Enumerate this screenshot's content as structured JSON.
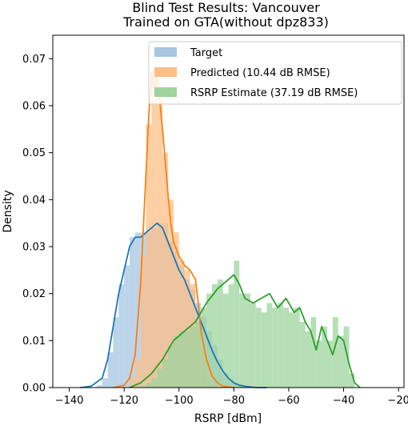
{
  "chart_data": {
    "type": "area",
    "title": "Blind Test Results: Vancouver",
    "subtitle": "Trained on GTA(without dpz833)",
    "xlabel": "RSRP [dBm]",
    "ylabel": "Density",
    "xlim": [
      -146,
      -18
    ],
    "ylim": [
      0,
      0.075
    ],
    "x_ticks": [
      -140,
      -120,
      -100,
      -80,
      -60,
      -40,
      -20
    ],
    "y_ticks": [
      0.0,
      0.01,
      0.02,
      0.03,
      0.04,
      0.05,
      0.06,
      0.07
    ],
    "x_tick_labels": [
      "−140",
      "−120",
      "−100",
      "−80",
      "−60",
      "−40",
      "−20"
    ],
    "y_tick_labels": [
      "0.00",
      "0.01",
      "0.02",
      "0.03",
      "0.04",
      "0.05",
      "0.06",
      "0.07"
    ],
    "grid": false,
    "legend_position": "top-right",
    "bin_width": 2,
    "series": [
      {
        "name": "Target",
        "color": "#1f77b4",
        "hist_color": "#a6c6e2",
        "hist_x": [
          -130,
          -128,
          -126,
          -124,
          -122,
          -120,
          -118,
          -116,
          -114,
          -112,
          -110,
          -108,
          -106,
          -104,
          -102,
          -100,
          -98,
          -96,
          -94,
          -92,
          -90,
          -88,
          -86,
          -84,
          -82,
          -80,
          -78,
          -76
        ],
        "hist_y": [
          0.0005,
          0.002,
          0.0075,
          0.015,
          0.022,
          0.026,
          0.032,
          0.033,
          0.033,
          0.033,
          0.034,
          0.035,
          0.035,
          0.031,
          0.029,
          0.026,
          0.023,
          0.021,
          0.018,
          0.015,
          0.012,
          0.009,
          0.006,
          0.003,
          0.0018,
          0.0008,
          0.0003,
          0.0001
        ],
        "kde_x": [
          -136,
          -132,
          -128,
          -126,
          -124,
          -122,
          -120,
          -118,
          -116,
          -114,
          -112,
          -110,
          -108,
          -106,
          -104,
          -102,
          -100,
          -98,
          -96,
          -94,
          -92,
          -90,
          -88,
          -86,
          -84,
          -82,
          -80,
          -78,
          -75,
          -72,
          -68
        ],
        "kde_y": [
          0.0,
          0.0003,
          0.002,
          0.006,
          0.013,
          0.02,
          0.025,
          0.03,
          0.032,
          0.032,
          0.033,
          0.034,
          0.035,
          0.034,
          0.031,
          0.028,
          0.025,
          0.023,
          0.02,
          0.017,
          0.014,
          0.011,
          0.008,
          0.0055,
          0.0035,
          0.002,
          0.001,
          0.0005,
          0.0002,
          0.0,
          0.0
        ]
      },
      {
        "name": "Predicted (10.44 dB RMSE)",
        "color": "#ff7f0e",
        "hist_color": "#fdbf86",
        "hist_x": [
          -118,
          -116,
          -114,
          -112,
          -110,
          -108,
          -106,
          -104,
          -102,
          -100,
          -98,
          -96,
          -94,
          -92,
          -90,
          -88
        ],
        "hist_y": [
          0.002,
          0.006,
          0.028,
          0.056,
          0.068,
          0.062,
          0.05,
          0.04,
          0.033,
          0.027,
          0.025,
          0.022,
          0.014,
          0.008,
          0.0035,
          0.001
        ],
        "kde_x": [
          -124,
          -120,
          -118,
          -116,
          -114,
          -112,
          -111,
          -110,
          -109,
          -108,
          -107,
          -106,
          -105,
          -104,
          -103,
          -102,
          -100,
          -98,
          -96,
          -94,
          -93,
          -92,
          -90,
          -88,
          -86,
          -84,
          -80
        ],
        "kde_y": [
          0.0,
          0.0005,
          0.002,
          0.007,
          0.022,
          0.046,
          0.058,
          0.067,
          0.064,
          0.066,
          0.061,
          0.055,
          0.048,
          0.041,
          0.035,
          0.031,
          0.028,
          0.026,
          0.025,
          0.023,
          0.018,
          0.012,
          0.006,
          0.0025,
          0.001,
          0.0003,
          0.0
        ]
      },
      {
        "name": "RSRP Estimate (37.19 dB RMSE)",
        "color": "#2ca02c",
        "hist_color": "#9ed49d",
        "hist_x": [
          -114,
          -112,
          -110,
          -108,
          -106,
          -104,
          -102,
          -100,
          -98,
          -96,
          -94,
          -92,
          -90,
          -88,
          -86,
          -84,
          -82,
          -80,
          -78,
          -76,
          -74,
          -72,
          -70,
          -68,
          -66,
          -64,
          -62,
          -60,
          -58,
          -56,
          -54,
          -52,
          -50,
          -48,
          -46,
          -44,
          -42,
          -40,
          -38
        ],
        "hist_y": [
          0.0005,
          0.001,
          0.002,
          0.004,
          0.006,
          0.009,
          0.011,
          0.012,
          0.012,
          0.013,
          0.014,
          0.017,
          0.02,
          0.022,
          0.023,
          0.02,
          0.022,
          0.027,
          0.02,
          0.02,
          0.018,
          0.017,
          0.016,
          0.018,
          0.017,
          0.018,
          0.017,
          0.016,
          0.017,
          0.014,
          0.012,
          0.015,
          0.01,
          0.013,
          0.01,
          0.015,
          0.011,
          0.013,
          0.003
        ],
        "kde_x": [
          -118,
          -114,
          -110,
          -106,
          -102,
          -98,
          -94,
          -90,
          -86,
          -82,
          -80,
          -78,
          -76,
          -73,
          -70,
          -67,
          -64,
          -61,
          -58,
          -56,
          -54,
          -52,
          -50,
          -48,
          -46,
          -44,
          -42,
          -40,
          -38,
          -36,
          -34
        ],
        "kde_y": [
          0.0,
          0.001,
          0.003,
          0.006,
          0.01,
          0.012,
          0.014,
          0.018,
          0.021,
          0.023,
          0.024,
          0.022,
          0.019,
          0.018,
          0.019,
          0.02,
          0.017,
          0.019,
          0.016,
          0.017,
          0.014,
          0.012,
          0.008,
          0.013,
          0.01,
          0.007,
          0.011,
          0.01,
          0.005,
          0.001,
          0.0
        ]
      }
    ]
  }
}
